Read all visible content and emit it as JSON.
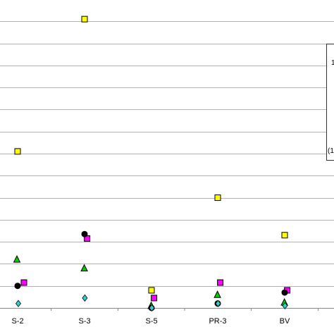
{
  "chart_data": {
    "type": "scatter",
    "categories": [
      "S-2",
      "S-3",
      "S-5",
      "PR-3",
      "BV"
    ],
    "ylim": [
      0,
      28
    ],
    "grid": true,
    "legend_placement": "right",
    "legend_fragments": [
      "1",
      "(1"
    ],
    "colors": {
      "yellow_square": "#ffff00",
      "magenta_square": "#ff00ff",
      "green_triangle": "#00cc00",
      "black_circle": "#000000",
      "cyan_diamond": "#33cccc",
      "grid": "#b3b3b3",
      "axis": "#888888"
    },
    "series": [
      {
        "marker": "square",
        "color": "yellow_square",
        "values": [
          14.2,
          26.2,
          1.6,
          10.0,
          6.6
        ]
      },
      {
        "marker": "square",
        "color": "magenta_square",
        "values": [
          2.3,
          6.3,
          0.9,
          2.3,
          1.6
        ]
      },
      {
        "marker": "triangle",
        "color": "green_triangle",
        "values": [
          4.4,
          3.6,
          0.2,
          1.2,
          0.5
        ]
      },
      {
        "marker": "circle",
        "color": "black_circle",
        "values": [
          2.0,
          6.7,
          0.0,
          0.4,
          1.4
        ]
      },
      {
        "marker": "diamond",
        "color": "cyan_diamond",
        "values": [
          0.4,
          0.9,
          0.0,
          0.4,
          0.2
        ]
      }
    ]
  }
}
